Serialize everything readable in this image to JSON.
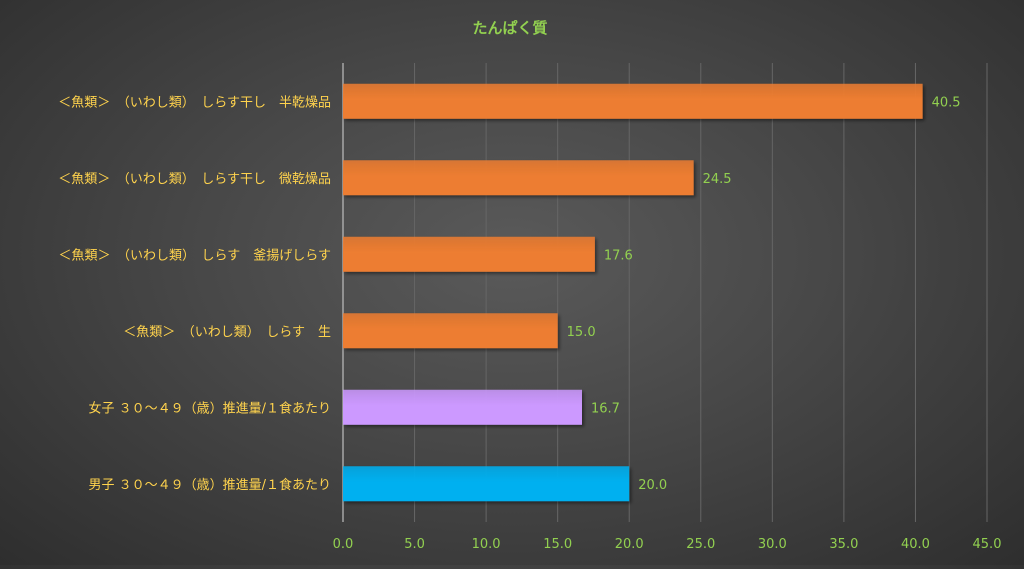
{
  "chart_data": {
    "type": "bar",
    "orientation": "horizontal",
    "title": "たんぱく質",
    "categories": [
      "＜魚類＞　（いわし類）　しらす干し　半乾燥品",
      "＜魚類＞　（いわし類）　しらす干し　微乾燥品",
      "＜魚類＞　（いわし類）　しらす　釜揚げしらす",
      "＜魚類＞　（いわし類）　しらす　生",
      "女子 ３０～４９（歳）推進量/１食あたり",
      "男子 ３０～４９（歳）推進量/１食あたり"
    ],
    "values": [
      40.5,
      24.5,
      17.6,
      15.0,
      16.7,
      20.0
    ],
    "value_labels": [
      "40.5",
      "24.5",
      "17.6",
      "15.0",
      "16.7",
      "20.0"
    ],
    "bar_colors": [
      "#ED7D31",
      "#ED7D31",
      "#ED7D31",
      "#ED7D31",
      "#CC99FF",
      "#00B0F0"
    ],
    "xlim": [
      0,
      45
    ],
    "x_ticks": [
      0,
      5,
      10,
      15,
      20,
      25,
      30,
      35,
      40,
      45
    ],
    "x_tick_labels": [
      "0.0",
      "5.0",
      "10.0",
      "15.0",
      "20.0",
      "25.0",
      "30.0",
      "35.0",
      "40.0",
      "45.0"
    ],
    "grid": "vertical",
    "legend": "none",
    "colors": {
      "title": "#92D050",
      "category_text": "#FFD34D",
      "value_text": "#92D050",
      "tick_text": "#92D050",
      "grid": "#666666",
      "axis": "#BFBFBF"
    }
  }
}
